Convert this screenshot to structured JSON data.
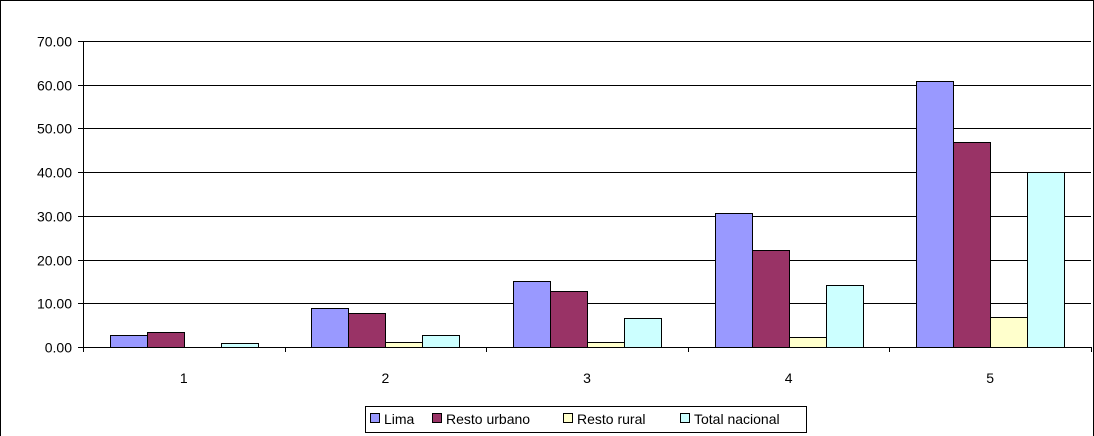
{
  "chart_data": {
    "type": "bar",
    "categories": [
      "1",
      "2",
      "3",
      "4",
      "5"
    ],
    "series": [
      {
        "name": "Lima",
        "color": "#9999ff",
        "values": [
          2.8,
          9.0,
          15.1,
          30.6,
          60.8
        ]
      },
      {
        "name": "Resto urbano",
        "color": "#993366",
        "values": [
          3.5,
          7.8,
          12.7,
          22.2,
          46.8
        ]
      },
      {
        "name": "Resto rural",
        "color": "#ffffcc",
        "values": [
          0.0,
          1.2,
          1.2,
          2.2,
          6.8
        ]
      },
      {
        "name": "Total nacional",
        "color": "#ccffff",
        "values": [
          1.0,
          2.8,
          6.6,
          14.2,
          40.1
        ]
      }
    ],
    "y_ticks": [
      "0.00",
      "10.00",
      "20.00",
      "30.00",
      "40.00",
      "50.00",
      "60.00",
      "70.00"
    ],
    "ylim": [
      0,
      70
    ],
    "grid": true,
    "legend_position": "bottom-center"
  }
}
